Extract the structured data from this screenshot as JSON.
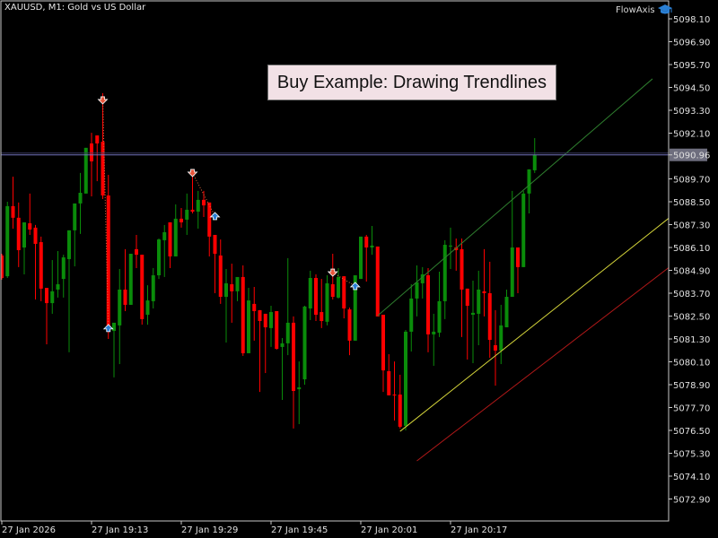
{
  "header": {
    "title": "XAUUSD, M1:  Gold vs US Dollar",
    "brand": "FlowAxis",
    "brand_icon": "graduation-cap-icon"
  },
  "banner": {
    "text": "Buy Example: Drawing Trendlines"
  },
  "colors": {
    "bull": "#0a8c0a",
    "bear": "#ff0000",
    "background": "#000000",
    "frame": "#c8c8c8",
    "bid_line": "#7070b8",
    "bid_label_bg": "#6e6e7e",
    "channel_upper": "#2e7d2e",
    "channel_middle": "#d4d43a",
    "channel_lower": "#b01818",
    "sell_arrow": "#e8553a",
    "buy_arrow": "#2a7fd4"
  },
  "chart_data": {
    "type": "candlestick",
    "symbol": "XAUUSD",
    "timeframe": "M1",
    "ylim": [
      5072.0,
      5099.0
    ],
    "y_ticks": [
      "5098.10",
      "5096.90",
      "5095.70",
      "5094.50",
      "5093.30",
      "5092.10",
      "5090.96",
      "5089.70",
      "5088.50",
      "5087.30",
      "5086.10",
      "5084.90",
      "5083.70",
      "5082.50",
      "5081.30",
      "5080.10",
      "5078.90",
      "5077.70",
      "5076.50",
      "5075.30",
      "5074.10",
      "5072.90"
    ],
    "x_ticks": [
      {
        "time": "18:57",
        "label": "27 Jan 2026"
      },
      {
        "time": "19:13",
        "label": "27 Jan 19:13"
      },
      {
        "time": "19:29",
        "label": "27 Jan 19:29"
      },
      {
        "time": "19:45",
        "label": "27 Jan 19:45"
      },
      {
        "time": "20:01",
        "label": "27 Jan 20:01"
      },
      {
        "time": "20:17",
        "label": "27 Jan 20:17"
      }
    ],
    "bid_price": "5090.96",
    "candles_columns": [
      "time",
      "open",
      "high",
      "low",
      "close"
    ],
    "candles": [
      [
        "18:57",
        5085.68,
        5085.77,
        5084.41,
        5084.5
      ],
      [
        "18:58",
        5084.59,
        5088.5,
        5084.5,
        5088.27
      ],
      [
        "18:59",
        5088.27,
        5089.82,
        5087.09,
        5087.66
      ],
      [
        "19:00",
        5087.66,
        5088.46,
        5085.07,
        5085.96
      ],
      [
        "19:01",
        5086.1,
        5087.42,
        5084.69,
        5087.42
      ],
      [
        "19:02",
        5087.37,
        5088.93,
        5086.76,
        5087.04
      ],
      [
        "19:03",
        5087.14,
        5087.28,
        5083.37,
        5086.29
      ],
      [
        "19:04",
        5086.38,
        5086.67,
        5083.28,
        5083.94
      ],
      [
        "19:05",
        5083.98,
        5083.98,
        5081.02,
        5083.18
      ],
      [
        "19:06",
        5083.18,
        5085.44,
        5082.62,
        5083.8
      ],
      [
        "19:07",
        5083.89,
        5085.91,
        5083.47,
        5084.17
      ],
      [
        "19:08",
        5084.45,
        5085.72,
        5083.47,
        5085.58
      ],
      [
        "19:09",
        5085.49,
        5087.0,
        5080.6,
        5087.0
      ],
      [
        "19:10",
        5087.0,
        5088.41,
        5085.11,
        5088.41
      ],
      [
        "19:11",
        5088.41,
        5090.01,
        5086.81,
        5088.97
      ],
      [
        "19:12",
        5088.93,
        5091.33,
        5088.93,
        5091.33
      ],
      [
        "19:13",
        5091.56,
        5092.12,
        5088.78,
        5090.62
      ],
      [
        "19:14",
        5091.98,
        5091.98,
        5089.58,
        5091.56
      ],
      [
        "19:15",
        5091.65,
        5094.2,
        5088.64,
        5088.83
      ],
      [
        "19:16",
        5088.83,
        5089.91,
        5081.3,
        5081.96
      ],
      [
        "19:17",
        5081.72,
        5082.15,
        5079.28,
        5082.15
      ],
      [
        "19:18",
        5082.01,
        5084.97,
        5079.98,
        5083.89
      ],
      [
        "19:19",
        5083.89,
        5086.01,
        5082.76,
        5083.09
      ],
      [
        "19:20",
        5083.09,
        5085.77,
        5083.09,
        5085.77
      ],
      [
        "19:21",
        5086.01,
        5086.76,
        5085.02,
        5085.72
      ],
      [
        "19:22",
        5085.72,
        5085.72,
        5082.05,
        5082.34
      ],
      [
        "19:23",
        5082.57,
        5084.12,
        5082.05,
        5083.32
      ],
      [
        "19:24",
        5083.28,
        5085.02,
        5082.9,
        5084.64
      ],
      [
        "19:25",
        5084.64,
        5086.57,
        5084.45,
        5086.52
      ],
      [
        "19:26",
        5086.48,
        5087.28,
        5084.55,
        5086.9
      ],
      [
        "19:27",
        5087.42,
        5087.42,
        5085.02,
        5085.63
      ],
      [
        "19:28",
        5085.63,
        5088.36,
        5085.63,
        5087.61
      ],
      [
        "19:29",
        5087.61,
        5088.17,
        5087.14,
        5087.42
      ],
      [
        "19:30",
        5087.56,
        5088.93,
        5086.76,
        5088.08
      ],
      [
        "19:31",
        5088.08,
        5089.82,
        5087.89,
        5087.98
      ],
      [
        "19:32",
        5087.98,
        5089.07,
        5087.09,
        5088.6
      ],
      [
        "19:33",
        5088.6,
        5089.07,
        5087.7,
        5088.31
      ],
      [
        "19:34",
        5088.46,
        5088.46,
        5085.63,
        5086.67
      ],
      [
        "19:35",
        5086.76,
        5086.76,
        5083.7,
        5085.77
      ],
      [
        "19:36",
        5085.68,
        5086.52,
        5083.14,
        5083.51
      ],
      [
        "19:37",
        5083.51,
        5084.97,
        5081.11,
        5084.22
      ],
      [
        "19:38",
        5084.17,
        5085.25,
        5082.15,
        5083.8
      ],
      [
        "19:39",
        5083.8,
        5084.55,
        5083.28,
        5084.55
      ],
      [
        "19:40",
        5084.55,
        5085.16,
        5080.41,
        5080.55
      ],
      [
        "19:41",
        5080.55,
        5083.98,
        5080.55,
        5083.32
      ],
      [
        "19:42",
        5083.14,
        5084.03,
        5081.21,
        5082.76
      ],
      [
        "19:43",
        5082.81,
        5082.81,
        5078.52,
        5082.24
      ],
      [
        "19:44",
        5082.62,
        5082.62,
        5079.51,
        5081.91
      ],
      [
        "19:45",
        5081.87,
        5083.04,
        5080.88,
        5082.71
      ],
      [
        "19:46",
        5082.76,
        5082.76,
        5080.74,
        5080.78
      ],
      [
        "19:47",
        5080.88,
        5081.35,
        5078.1,
        5081.07
      ],
      [
        "19:48",
        5081.07,
        5085.54,
        5080.45,
        5082.15
      ],
      [
        "19:49",
        5082.15,
        5082.48,
        5076.6,
        5078.57
      ],
      [
        "19:50",
        5078.66,
        5080.12,
        5076.83,
        5078.76
      ],
      [
        "19:51",
        5079.18,
        5083.04,
        5078.9,
        5083.0
      ],
      [
        "19:52",
        5082.9,
        5084.88,
        5082.29,
        5084.5
      ],
      [
        "19:53",
        5084.5,
        5084.69,
        5082.24,
        5082.57
      ],
      [
        "19:54",
        5082.71,
        5084.45,
        5081.87,
        5082.24
      ],
      [
        "19:55",
        5082.2,
        5084.64,
        5082.01,
        5084.22
      ],
      [
        "19:56",
        5084.17,
        5085.77,
        5083.37,
        5083.51
      ],
      [
        "19:57",
        5083.47,
        5085.02,
        5083.42,
        5084.55
      ],
      [
        "19:58",
        5084.59,
        5084.59,
        5082.38,
        5082.9
      ],
      [
        "19:59",
        5082.85,
        5082.95,
        5080.45,
        5081.21
      ],
      [
        "20:00",
        5081.21,
        5084.64,
        5081.21,
        5084.64
      ],
      [
        "20:01",
        5084.45,
        5086.67,
        5084.45,
        5086.67
      ],
      [
        "20:02",
        5086.67,
        5086.76,
        5084.31,
        5086.1
      ],
      [
        "20:03",
        5086.1,
        5087.23,
        5085.72,
        5086.2
      ],
      [
        "20:04",
        5086.15,
        5086.15,
        5082.48,
        5082.48
      ],
      [
        "20:05",
        5082.57,
        5082.57,
        5078.52,
        5079.65
      ],
      [
        "20:06",
        5079.61,
        5080.5,
        5078.34,
        5078.34
      ],
      [
        "20:07",
        5078.38,
        5080.12,
        5077.02,
        5078.35
      ],
      [
        "20:08",
        5078.38,
        5079.42,
        5076.6,
        5076.69
      ],
      [
        "20:09",
        5076.74,
        5081.77,
        5076.5,
        5081.68
      ],
      [
        "20:10",
        5081.68,
        5084.17,
        5080.64,
        5083.42
      ],
      [
        "20:11",
        5083.42,
        5085.16,
        5082.48,
        5084.27
      ],
      [
        "20:12",
        5084.22,
        5085.07,
        5083.42,
        5084.69
      ],
      [
        "20:13",
        5084.64,
        5085.02,
        5080.6,
        5081.54
      ],
      [
        "20:14",
        5081.54,
        5082.62,
        5079.89,
        5081.68
      ],
      [
        "20:15",
        5081.63,
        5084.83,
        5081.4,
        5083.28
      ],
      [
        "20:16",
        5083.28,
        5086.48,
        5082.34,
        5086.24
      ],
      [
        "20:17",
        5086.15,
        5087.14,
        5084.97,
        5086.2
      ],
      [
        "20:18",
        5086.1,
        5086.57,
        5084.88,
        5085.96
      ],
      [
        "20:19",
        5086.01,
        5086.57,
        5081.4,
        5083.89
      ],
      [
        "20:20",
        5083.94,
        5083.94,
        5080.22,
        5083.04
      ],
      [
        "20:21",
        5082.57,
        5084.36,
        5080.03,
        5082.67
      ],
      [
        "20:22",
        5082.62,
        5084.88,
        5080.97,
        5083.89
      ],
      [
        "20:23",
        5083.8,
        5086.01,
        5082.48,
        5083.7
      ],
      [
        "20:24",
        5083.7,
        5085.35,
        5080.31,
        5081.25
      ],
      [
        "20:25",
        5080.97,
        5082.81,
        5078.85,
        5080.69
      ],
      [
        "20:26",
        5080.69,
        5083.09,
        5079.98,
        5082.01
      ],
      [
        "20:27",
        5081.91,
        5083.89,
        5081.91,
        5083.51
      ],
      [
        "20:28",
        5083.51,
        5089.07,
        5083.51,
        5086.1
      ],
      [
        "20:29",
        5086.1,
        5086.1,
        5083.7,
        5085.07
      ],
      [
        "20:30",
        5085.07,
        5089.07,
        5085.07,
        5088.93
      ],
      [
        "20:31",
        5088.93,
        5090.2,
        5087.89,
        5090.2
      ],
      [
        "20:32",
        5090.15,
        5091.84,
        5090.01,
        5090.96
      ]
    ],
    "signals": [
      {
        "type": "sell",
        "time": "19:15",
        "price": 5093.82
      },
      {
        "type": "buy",
        "time": "19:16",
        "price": 5081.87
      },
      {
        "type": "sell",
        "time": "19:31",
        "price": 5090.01
      },
      {
        "type": "buy",
        "time": "19:35",
        "price": 5087.75
      },
      {
        "type": "sell",
        "time": "19:56",
        "price": 5084.78
      },
      {
        "type": "buy",
        "time": "20:00",
        "price": 5084.08
      }
    ],
    "trendlines": [
      {
        "role": "upper",
        "from": {
          "time": "20:04",
          "price": 5082.52
        },
        "to": {
          "time": "20:53",
          "price": 5094.95
        }
      },
      {
        "role": "middle",
        "from": {
          "time": "20:08",
          "price": 5076.45
        },
        "to": {
          "time": "20:56",
          "price": 5087.66
        }
      },
      {
        "role": "lower",
        "from": {
          "time": "20:11",
          "price": 5074.9
        },
        "to": {
          "time": "20:56",
          "price": 5085.07
        }
      }
    ]
  }
}
